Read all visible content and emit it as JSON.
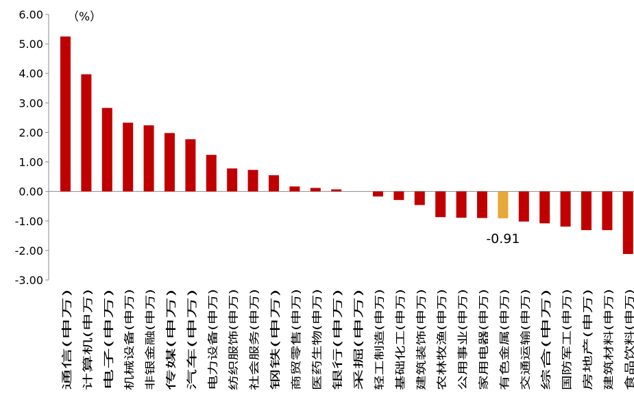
{
  "chart_data": {
    "type": "bar",
    "unit_label": "（%）",
    "ylim": [
      -3,
      6
    ],
    "yticks": [
      -3,
      -2,
      -1,
      0,
      1,
      2,
      3,
      4,
      5,
      6
    ],
    "ytick_labels": [
      "-3.00",
      "-2.00",
      "-1.00",
      "0.00",
      "1.00",
      "2.00",
      "3.00",
      "4.00",
      "5.00",
      "6.00"
    ],
    "grid": false,
    "legend": "none",
    "categories": [
      "通信(申万)",
      "计算机(申万)",
      "电子(申万)",
      "机械设备(申万)",
      "非银金融(申万)",
      "传媒(申万)",
      "汽车(申万)",
      "电力设备(申万)",
      "纺织服饰(申万)",
      "社会服务(申万)",
      "钢铁(申万)",
      "商贸零售(申万)",
      "医药生物(申万)",
      "银行(申万)",
      "采掘(申万)",
      "轻工制造(申万)",
      "基础化工(申万)",
      "建筑装饰(申万)",
      "农林牧渔(申万)",
      "公用事业(申万)",
      "家用电器(申万)",
      "有色金属(申万)",
      "交通运输(申万)",
      "综合(申万)",
      "国防军工(申万)",
      "房地产(申万)",
      "建筑材料(申万)",
      "食品饮料(申万)"
    ],
    "values": [
      5.25,
      3.97,
      2.83,
      2.33,
      2.24,
      1.98,
      1.77,
      1.24,
      0.78,
      0.73,
      0.55,
      0.17,
      0.12,
      0.07,
      0.0,
      -0.17,
      -0.29,
      -0.46,
      -0.87,
      -0.89,
      -0.9,
      -0.91,
      -1.02,
      -1.08,
      -1.19,
      -1.31,
      -1.31,
      -2.12
    ],
    "highlight_index": 21,
    "annotation": "-0.91",
    "colors": {
      "bar": "#c00000",
      "highlight": "#e6a93a",
      "axis": "#888888",
      "text": "#000000"
    }
  }
}
